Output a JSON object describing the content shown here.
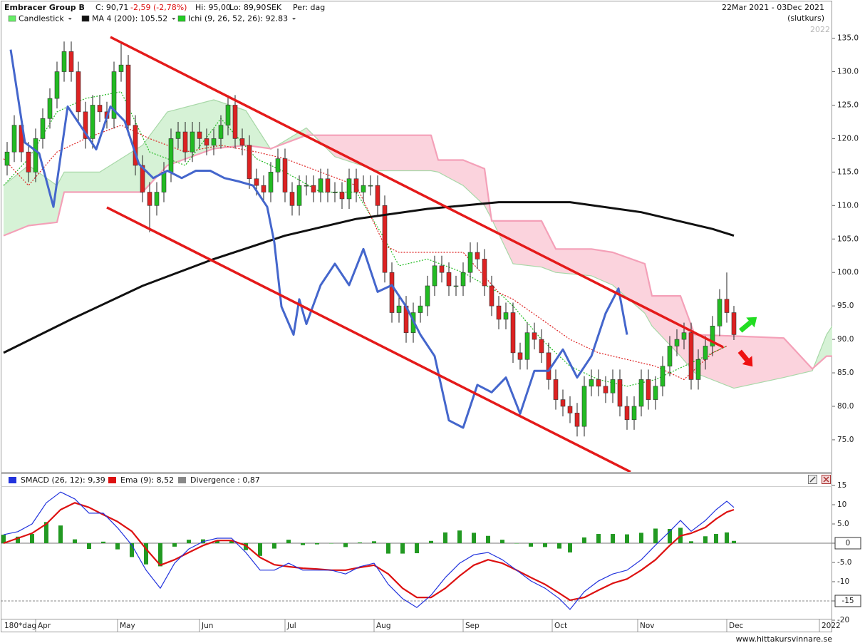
{
  "header": {
    "title": "Embracer Group B",
    "close": "C: 90,71",
    "change": "-2,59 (-2,78%)",
    "high": "Hi: 95,00",
    "low": "Lo: 89,90",
    "currency": "SEK",
    "period": "Per: dag",
    "range": "22Mar 2021 - 03Dec 2021",
    "note": "(slutkurs)",
    "watermark_year": "2022",
    "period_label": "180*dag",
    "footer": "www.hittakursvinnare.se"
  },
  "chart_data": [
    {
      "type": "candlestick",
      "xlim": [
        -0.5,
        115.8
      ],
      "xticks": [
        {
          "value": 4,
          "label": "Apr"
        },
        {
          "value": 15.5,
          "label": "May"
        },
        {
          "value": 27,
          "label": "Jun"
        },
        {
          "value": 39,
          "label": "Jul"
        },
        {
          "value": 51.5,
          "label": "Aug"
        },
        {
          "value": 64,
          "label": "Sep"
        },
        {
          "value": 76.5,
          "label": "Oct"
        },
        {
          "value": 88.5,
          "label": "Nov"
        },
        {
          "value": 101,
          "label": "Dec"
        },
        {
          "value": 114,
          "label": "2022"
        }
      ],
      "ylim": [
        70.2,
        137.3
      ],
      "yticks": [
        {
          "value": 75,
          "label": "75.0"
        },
        {
          "value": 80,
          "label": "80.0"
        },
        {
          "value": 85,
          "label": "85.0"
        },
        {
          "value": 90,
          "label": "90.0"
        },
        {
          "value": 95,
          "label": "95.0"
        },
        {
          "value": 100,
          "label": "100.0"
        },
        {
          "value": 105,
          "label": "105.0"
        },
        {
          "value": 110,
          "label": "110.0"
        },
        {
          "value": 115,
          "label": "115.0"
        },
        {
          "value": 120,
          "label": "120.0"
        },
        {
          "value": 125,
          "label": "125.0"
        },
        {
          "value": 130,
          "label": "130.0"
        },
        {
          "value": 135,
          "label": "135.0"
        }
      ],
      "candles": {
        "name": "Candlestick",
        "color": "#66ee66",
        "color_up": "#22bb22",
        "color_down": "#dd2222",
        "open": [
          116,
          118,
          122,
          118,
          115,
          120,
          123,
          126,
          130,
          133,
          130,
          124,
          120,
          125,
          124,
          123,
          130,
          131,
          122,
          116,
          112,
          110,
          112,
          115,
          120,
          121,
          118,
          121,
          120,
          119,
          120,
          122,
          125,
          120,
          119,
          114,
          113,
          112,
          115,
          117,
          112,
          110,
          113,
          113,
          112,
          114,
          112,
          112,
          111,
          114,
          112,
          113,
          113,
          110,
          100,
          94,
          95,
          91,
          94,
          95,
          98,
          101,
          100,
          98,
          98,
          100,
          103,
          102,
          98,
          95,
          93,
          94,
          88,
          87,
          91,
          90,
          88,
          84,
          81,
          80,
          79,
          77,
          83,
          84,
          83,
          82,
          84,
          80,
          78,
          80,
          84,
          81,
          83,
          86,
          89,
          90,
          91,
          84,
          87,
          89,
          92,
          96,
          94
        ],
        "high": [
          119.5,
          123.5,
          123.5,
          119.5,
          121.5,
          124.5,
          127.5,
          131.5,
          134.5,
          134.5,
          131.5,
          125.5,
          126.5,
          126.5,
          125.5,
          131.5,
          134.5,
          132.5,
          123.5,
          117.5,
          113.5,
          113.5,
          116.5,
          121.5,
          122.5,
          122.5,
          122.5,
          122.5,
          121.5,
          121.5,
          123.5,
          126.5,
          126.5,
          121.5,
          120.5,
          115.5,
          114.5,
          116.5,
          118.5,
          118.5,
          113.5,
          114.5,
          114.5,
          114.5,
          115.5,
          115.5,
          113.5,
          113.5,
          115.5,
          115.5,
          114.5,
          114.5,
          114.5,
          111.5,
          101.5,
          96.5,
          96.5,
          95.5,
          96.5,
          99.5,
          102.5,
          102.5,
          101.5,
          99.5,
          101.5,
          104.5,
          104.5,
          103.5,
          99.5,
          96.5,
          95.5,
          95.5,
          89.5,
          92.5,
          92.5,
          91.5,
          89.5,
          85.5,
          82.5,
          81.5,
          80.5,
          84.5,
          85.5,
          85.5,
          84.5,
          85.5,
          85.5,
          81.5,
          81.5,
          85.5,
          85.5,
          84.5,
          87.5,
          90.5,
          91.5,
          92.5,
          92.5,
          88.5,
          90.5,
          93.5,
          97.5,
          100,
          95
        ],
        "low": [
          114.5,
          116.5,
          116.5,
          113.5,
          113.5,
          118.5,
          121.5,
          124.5,
          128.5,
          128.5,
          122.5,
          118.5,
          118.5,
          122.5,
          121.5,
          121.5,
          128.5,
          120.5,
          114.5,
          110.5,
          106,
          108.5,
          110.5,
          113.5,
          118.5,
          116.5,
          116.5,
          118.5,
          117.5,
          117.5,
          118.5,
          120.5,
          118.5,
          117.5,
          112.5,
          111.5,
          110.5,
          110.5,
          113.5,
          110.5,
          108.5,
          108.5,
          111.5,
          110.5,
          110.5,
          110.5,
          110.5,
          109.5,
          109.5,
          110.5,
          110.5,
          111.5,
          108.5,
          98.5,
          92.5,
          92.5,
          89.5,
          89.5,
          92.5,
          93.5,
          96.5,
          98.5,
          96.5,
          96.5,
          96.5,
          98.5,
          100.5,
          96.5,
          93.5,
          91.5,
          91.5,
          86.5,
          85.5,
          85.5,
          88.5,
          86.5,
          82.5,
          79.5,
          78.5,
          77.5,
          75.5,
          75.5,
          81.5,
          81.5,
          80.5,
          80.5,
          78.5,
          76.5,
          76.5,
          78.5,
          79.5,
          79.5,
          81.5,
          84.5,
          87.5,
          88.5,
          82.5,
          82.5,
          85.5,
          87.5,
          90.5,
          92.5,
          89.9
        ],
        "close": [
          118,
          122,
          118,
          115,
          120,
          123,
          126,
          130,
          133,
          130,
          124,
          120,
          125,
          124,
          123,
          130,
          131,
          122,
          116,
          112,
          110,
          112,
          115,
          120,
          121,
          118,
          121,
          120,
          119,
          120,
          122,
          125,
          120,
          119,
          114,
          113,
          112,
          115,
          117,
          112,
          110,
          113,
          113,
          112,
          114,
          112,
          112,
          111,
          114,
          112,
          113,
          113,
          110,
          100,
          94,
          95,
          91,
          94,
          95,
          98,
          101,
          100,
          98,
          98,
          100,
          103,
          102,
          98,
          95,
          93,
          94,
          88,
          87,
          91,
          90,
          88,
          84,
          81,
          80,
          79,
          77,
          83,
          84,
          83,
          82,
          84,
          80,
          78,
          80,
          84,
          81,
          83,
          86,
          89,
          90,
          91,
          84,
          87,
          89,
          92,
          96,
          94,
          90.71
        ]
      },
      "ichimoku": {
        "name": "Ichi (9, 26, 52, 26): 92.83",
        "color": "#22cc22",
        "cloud_up": "#d6f2d6",
        "cloud_down": "#fbd3dd",
        "span_a_color": "#a8d8a8",
        "span_b_color": "#f4a0b8",
        "tenkan_color": "#22bb22",
        "kijun_color": "#dd2222",
        "x": [
          -0.5,
          3,
          7,
          8,
          13,
          19,
          22.5,
          29,
          33.5,
          37,
          42,
          46,
          52,
          59.5,
          60.5,
          64,
          67,
          68,
          71,
          75,
          77,
          82,
          85,
          89.5,
          90.5,
          94.5,
          96.5,
          102,
          109,
          113,
          115,
          115.8
        ],
        "span_a": [
          113,
          116,
          113,
          115,
          115,
          119,
          124,
          125.8,
          124.2,
          118.4,
          121.6,
          117.3,
          115.2,
          115.2,
          115,
          113,
          110,
          108,
          101.3,
          100.8,
          100,
          99.5,
          98.1,
          93.9,
          92,
          87.5,
          85,
          82.7,
          84.3,
          85.3,
          90.7,
          92
        ],
        "span_b": [
          105.5,
          107,
          107.5,
          112,
          112,
          112,
          116,
          118.5,
          119,
          118.5,
          120.5,
          120.5,
          120.5,
          120.5,
          116.8,
          116.8,
          115.5,
          107.7,
          107.7,
          107.7,
          103.5,
          103.5,
          103,
          101.3,
          96.5,
          96.5,
          90.7,
          90.5,
          90.2,
          85.6,
          87.5,
          87.5
        ],
        "x2": [
          -0.5,
          3,
          7,
          11,
          16,
          20,
          25,
          30,
          35,
          39,
          44,
          49,
          53,
          55,
          59,
          64,
          69,
          71,
          75,
          79,
          83,
          87,
          91,
          95,
          99,
          101
        ],
        "tenkan": [
          113,
          117,
          124,
          126,
          127,
          118,
          116,
          123,
          117,
          115,
          112,
          112,
          105,
          101,
          102,
          100,
          97,
          95,
          90,
          86,
          84,
          83,
          84,
          86,
          88,
          89
        ],
        "kijun": [
          117,
          113,
          118,
          120,
          122,
          120,
          118,
          119,
          118,
          117,
          115,
          113,
          104,
          103,
          103,
          103,
          97,
          96,
          93,
          90,
          88,
          87,
          86,
          84,
          88,
          89
        ]
      },
      "series": [
        {
          "name": "MA 4 (200): 105.52",
          "color": "#111111",
          "x": [
            -0.5,
            9,
            19,
            29,
            39,
            49,
            59,
            69,
            79,
            89,
            99,
            102
          ],
          "values": [
            88,
            93,
            98,
            102,
            105.5,
            108,
            109.5,
            110.5,
            110.5,
            109,
            106.5,
            105.5
          ]
        },
        {
          "color": "#4466cc",
          "x": [
            0.5,
            2.5,
            4.5,
            6.5,
            8.5,
            10.5,
            12.5,
            14.5,
            16.5,
            18.5,
            20.5,
            22.5,
            24.5,
            26.5,
            28.5,
            30.5,
            32.5,
            34.5,
            36.5,
            37.5,
            38.5,
            40.2,
            41,
            42,
            44,
            46,
            48,
            50,
            52,
            54,
            56,
            58,
            60,
            62,
            64,
            66,
            68,
            70,
            72,
            74,
            76,
            78,
            80,
            82,
            84,
            85.8,
            87
          ],
          "values": [
            133.3,
            119.4,
            117.8,
            109.8,
            124.8,
            121.6,
            118.4,
            124.8,
            122.6,
            116.2,
            114.1,
            115.2,
            114.1,
            115.2,
            115.2,
            114.1,
            113.6,
            113,
            109.8,
            104.5,
            94.9,
            90.7,
            96,
            92.3,
            98.1,
            101.3,
            98.1,
            103.5,
            97.1,
            98.1,
            94.9,
            90.7,
            87.5,
            77.9,
            76.8,
            83.2,
            82.1,
            84.3,
            78.9,
            85.3,
            85.3,
            88.5,
            84.3,
            87.5,
            93.9,
            97.6,
            90.7
          ]
        }
      ]
    },
    {
      "type": "macd",
      "ylim": [
        -20,
        15
      ],
      "yticks": [
        15,
        10,
        {
          "value": 5,
          "label": "5.0"
        },
        0,
        {
          "value": -5,
          "label": "-5.0"
        },
        -10,
        -15,
        -20
      ],
      "hlines": [
        0,
        -15
      ],
      "x": [
        -0.5,
        1.5,
        3.5,
        5.5,
        7.5,
        9.5,
        11.5,
        13.5,
        15.5,
        17.5,
        19.5,
        21.5,
        23.5,
        25.5,
        27.5,
        29.5,
        31.5,
        33.5,
        35.5,
        37.5,
        39.5,
        41.5,
        43.5,
        45.5,
        47.5,
        49.5,
        51.5,
        53.5,
        55.5,
        57.5,
        59.5,
        61.5,
        63.5,
        65.5,
        67.5,
        69.5,
        71.5,
        73.5,
        75.5,
        77.5,
        79,
        81,
        83,
        85,
        87,
        89,
        91,
        93,
        94.5,
        96,
        98,
        99.5,
        101,
        102
      ],
      "series": [
        {
          "name": "SMACD (26, 12): 9,39",
          "color": "#2233dd",
          "values": [
            2.2,
            3,
            5,
            10.5,
            13.3,
            11.5,
            7.8,
            7.8,
            4,
            -0.5,
            -7,
            -11.7,
            -5.2,
            -1.5,
            0.4,
            1.3,
            1.3,
            -2.4,
            -7,
            -7,
            -5.2,
            -7,
            -7,
            -7,
            -8,
            -6.1,
            -5.2,
            -10.7,
            -14.4,
            -16.7,
            -13.5,
            -8.9,
            -5.2,
            -3,
            -2.4,
            -4.3,
            -7,
            -9.8,
            -11.7,
            -14.4,
            -17.2,
            -12.6,
            -9.8,
            -8,
            -7,
            -4.3,
            -0.5,
            3.1,
            5.9,
            3.1,
            5.9,
            8.7,
            10.9,
            9.3
          ]
        },
        {
          "name": "Ema (9): 8,52",
          "color": "#dd1111",
          "values": [
            0,
            1.3,
            2.6,
            5,
            8.7,
            10.5,
            9.3,
            7.4,
            5.6,
            3.1,
            -1.5,
            -5.7,
            -4.3,
            -2.4,
            -0.6,
            0.7,
            0.7,
            -0.6,
            -3.7,
            -5.6,
            -6.1,
            -6.5,
            -6.7,
            -7,
            -7,
            -6.3,
            -5.7,
            -8,
            -11.7,
            -14.1,
            -14.1,
            -11.7,
            -8.5,
            -5.7,
            -4.3,
            -5.2,
            -7,
            -8.9,
            -10.7,
            -13,
            -14.8,
            -14.1,
            -12.2,
            -10.4,
            -9.3,
            -7,
            -4.3,
            -0.6,
            1.9,
            2.6,
            4.1,
            6.3,
            8.1,
            8.7
          ]
        },
        {
          "name": "Divergence : 0,87",
          "color": "#888888",
          "bar_color": "#229922",
          "values": [
            2.2,
            1.7,
            2.4,
            5.5,
            4.6,
            1.0,
            -1.5,
            0.4,
            -1.6,
            -3.6,
            -5.5,
            -6.0,
            -0.9,
            0.9,
            1.0,
            0.6,
            0.6,
            -1.8,
            -3.3,
            -1.4,
            0.9,
            -0.5,
            -0.3,
            0,
            -1,
            0.2,
            0.5,
            -2.7,
            -2.7,
            -2.6,
            0.6,
            2.8,
            3.3,
            2.7,
            1.9,
            0.9,
            0,
            -0.9,
            -1.0,
            -1.4,
            -2.4,
            1.5,
            2.4,
            2.4,
            2.3,
            2.7,
            3.8,
            3.7,
            4.0,
            0.5,
            1.8,
            2.4,
            2.8,
            0.6
          ]
        }
      ]
    }
  ]
}
